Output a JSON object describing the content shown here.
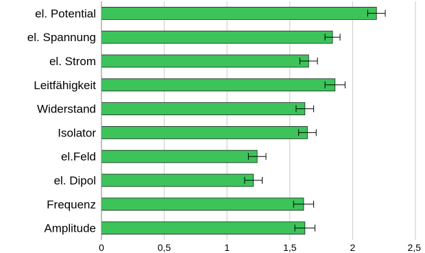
{
  "chart_data": {
    "type": "bar",
    "orientation": "horizontal",
    "categories": [
      "el. Potential",
      "el. Spannung",
      "el. Strom",
      "Leitfähigkeit",
      "Widerstand",
      "Isolator",
      "el.Feld",
      "el. Dipol",
      "Frequenz",
      "Amplitude"
    ],
    "values": [
      2.19,
      1.84,
      1.65,
      1.86,
      1.62,
      1.64,
      1.24,
      1.21,
      1.61,
      1.62
    ],
    "errors": [
      0.07,
      0.06,
      0.07,
      0.08,
      0.07,
      0.07,
      0.07,
      0.07,
      0.08,
      0.08
    ],
    "xlim": [
      0,
      2.5
    ],
    "x_ticks": [
      "0",
      "0,5",
      "1",
      "1,5",
      "2",
      "2,5"
    ],
    "grid": "vertical",
    "bar_color": "#3cc35a",
    "title": "",
    "xlabel": "",
    "ylabel": ""
  }
}
